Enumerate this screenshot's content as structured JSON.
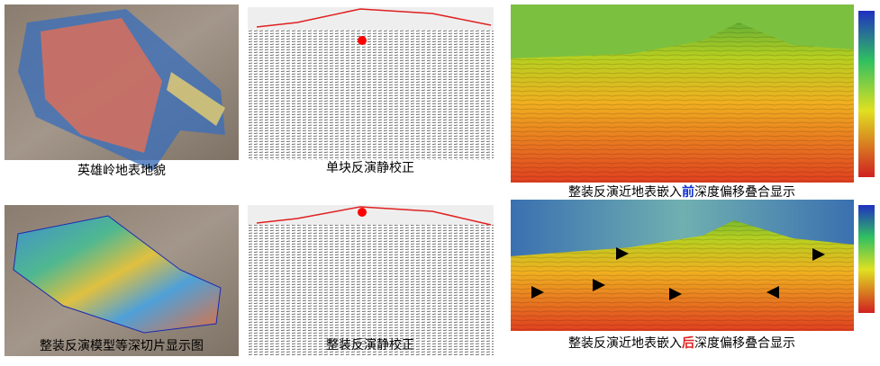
{
  "panels": [
    {
      "caption": {
        "text": "英雄岭地表地貌"
      }
    },
    {
      "caption": {
        "text": "单块反演静校正"
      }
    },
    {
      "caption": {
        "prefix": "整装反演近地表嵌入",
        "emphasis": "前",
        "suffix": "深度偏移叠合显示"
      }
    },
    {
      "caption": {
        "text": "整装反演模型等深切片显示图"
      }
    },
    {
      "caption": {
        "text": "整装反演静校正"
      }
    },
    {
      "caption": {
        "prefix": "整装反演近地表嵌入",
        "emphasis": "后",
        "suffix": "深度偏移叠合显示"
      }
    }
  ]
}
